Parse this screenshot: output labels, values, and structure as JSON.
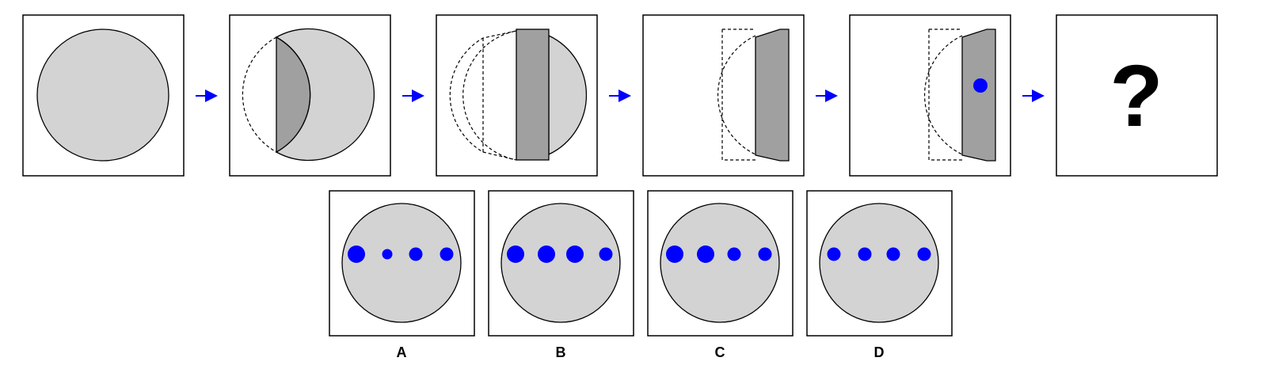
{
  "sequence": {
    "question_mark": "?"
  },
  "options": [
    {
      "label": "A",
      "dot_sizes": [
        "large",
        "small",
        "medium",
        "medium"
      ]
    },
    {
      "label": "B",
      "dot_sizes": [
        "large",
        "large",
        "large",
        "medium"
      ]
    },
    {
      "label": "C",
      "dot_sizes": [
        "large",
        "large",
        "medium",
        "medium"
      ]
    },
    {
      "label": "D",
      "dot_sizes": [
        "medium",
        "medium",
        "medium",
        "medium"
      ]
    }
  ],
  "colors": {
    "circle_fill": "#d3d3d3",
    "folded_fill": "#a0a0a0",
    "dot": "#0000ff",
    "arrow": "#0000ff",
    "border": "#000000"
  }
}
